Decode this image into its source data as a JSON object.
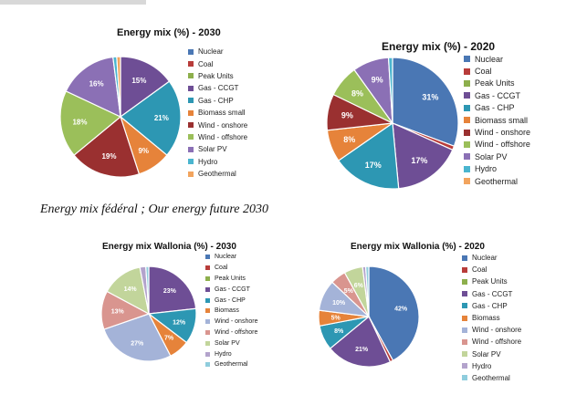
{
  "caption": "Energy mix fédéral ; Our energy future 2030",
  "colors": {
    "Nuclear": "#4a77b4",
    "Coal": "#b83c3a",
    "Peak Units": "#8daf4c",
    "Gas - CCGT": "#6e4e95",
    "Gas - CHP": "#2d97b3",
    "Biomass small": "#e6833a",
    "Biomass": "#e6833a",
    "Wind - onshore": "#9a3030",
    "Wind - offshore": "#9bbf5a",
    "Solar PV": "#8b70b5",
    "Hydro": "#4ab5cf",
    "Geothermal": "#f2a45e",
    "Wind - onshore W": "#a4b3d8",
    "Wind - offshore W": "#d9958f",
    "Solar PV W": "#c2d59b",
    "Hydro W": "#b3a3cc",
    "Geothermal W": "#8fcddd"
  },
  "chart_data": [
    {
      "type": "pie",
      "title": "Energy mix (%) - 2030",
      "slices": [
        {
          "label": "Nuclear",
          "value": 0,
          "shown": ""
        },
        {
          "label": "Coal",
          "value": 0,
          "shown": ""
        },
        {
          "label": "Peak Units",
          "value": 0,
          "shown": ""
        },
        {
          "label": "Gas - CCGT",
          "value": 15,
          "shown": "15%"
        },
        {
          "label": "Gas - CHP",
          "value": 21,
          "shown": "21%"
        },
        {
          "label": "Biomass small",
          "value": 9,
          "shown": "9%"
        },
        {
          "label": "Wind - onshore",
          "value": 19,
          "shown": "19%"
        },
        {
          "label": "Wind - offshore",
          "value": 18,
          "shown": "18%"
        },
        {
          "label": "Solar PV",
          "value": 16,
          "shown": "16%"
        },
        {
          "label": "Hydro",
          "value": 1,
          "shown": ""
        },
        {
          "label": "Geothermal",
          "value": 1,
          "shown": ""
        }
      ],
      "legend": [
        "Nuclear",
        "Coal",
        "Peak Units",
        "Gas - CCGT",
        "Gas - CHP",
        "Biomass small",
        "Wind - onshore",
        "Wind - offshore",
        "Solar PV",
        "Hydro",
        "Geothermal"
      ],
      "legend_colors": [
        "Nuclear",
        "Coal",
        "Peak Units",
        "Gas - CCGT",
        "Gas - CHP",
        "Biomass small",
        "Wind - onshore",
        "Wind - offshore",
        "Solar PV",
        "Hydro",
        "Geothermal"
      ]
    },
    {
      "type": "pie",
      "title": "Energy mix (%) - 2020",
      "slices": [
        {
          "label": "Nuclear",
          "value": 31,
          "shown": "31%"
        },
        {
          "label": "Coal",
          "value": 1,
          "shown": ""
        },
        {
          "label": "Peak Units",
          "value": 0,
          "shown": ""
        },
        {
          "label": "Gas - CCGT",
          "value": 17,
          "shown": "17%"
        },
        {
          "label": "Gas - CHP",
          "value": 17,
          "shown": "17%"
        },
        {
          "label": "Biomass small",
          "value": 8,
          "shown": "8%"
        },
        {
          "label": "Wind - onshore",
          "value": 9,
          "shown": "9%"
        },
        {
          "label": "Wind - offshore",
          "value": 8,
          "shown": "8%"
        },
        {
          "label": "Solar PV",
          "value": 9,
          "shown": "9%"
        },
        {
          "label": "Hydro",
          "value": 1,
          "shown": ""
        },
        {
          "label": "Geothermal",
          "value": 0,
          "shown": ""
        }
      ],
      "legend": [
        "Nuclear",
        "Coal",
        "Peak Units",
        "Gas - CCGT",
        "Gas - CHP",
        "Biomass small",
        "Wind - onshore",
        "Wind - offshore",
        "Solar PV",
        "Hydro",
        "Geothermal"
      ],
      "legend_colors": [
        "Nuclear",
        "Coal",
        "Peak Units",
        "Gas - CCGT",
        "Gas - CHP",
        "Biomass small",
        "Wind - onshore",
        "Wind - offshore",
        "Solar PV",
        "Hydro",
        "Geothermal"
      ]
    },
    {
      "type": "pie",
      "title": "Energy mix Wallonia  (%) - 2030",
      "slices": [
        {
          "label": "Nuclear",
          "value": 0,
          "shown": ""
        },
        {
          "label": "Coal",
          "value": 0,
          "shown": ""
        },
        {
          "label": "Peak Units",
          "value": 0,
          "shown": ""
        },
        {
          "label": "Gas - CCGT",
          "value": 23,
          "shown": "23%"
        },
        {
          "label": "Gas - CHP",
          "value": 12,
          "shown": "12%"
        },
        {
          "label": "Biomass",
          "value": 7,
          "shown": "7%"
        },
        {
          "label": "Wind - onshore",
          "value": 27,
          "shown": "27%"
        },
        {
          "label": "Wind - offshore",
          "value": 13,
          "shown": "13%"
        },
        {
          "label": "Solar PV",
          "value": 14,
          "shown": "14%"
        },
        {
          "label": "Hydro",
          "value": 2,
          "shown": ""
        },
        {
          "label": "Geothermal",
          "value": 1,
          "shown": ""
        }
      ],
      "legend": [
        "Nuclear",
        "Coal",
        "Peak Units",
        "Gas - CCGT",
        "Gas - CHP",
        "Biomass",
        "Wind - onshore",
        "Wind - offshore",
        "Solar PV",
        "Hydro",
        "Geothermal"
      ],
      "legend_colors": [
        "Nuclear",
        "Coal",
        "Peak Units",
        "Gas - CCGT",
        "Gas - CHP",
        "Biomass",
        "Wind - onshore W",
        "Wind - offshore W",
        "Solar PV W",
        "Hydro W",
        "Geothermal W"
      ]
    },
    {
      "type": "pie",
      "title": "Energy mix Wallonia  (%) - 2020",
      "slices": [
        {
          "label": "Nuclear",
          "value": 42,
          "shown": "42%"
        },
        {
          "label": "Coal",
          "value": 1,
          "shown": ""
        },
        {
          "label": "Peak Units",
          "value": 0,
          "shown": ""
        },
        {
          "label": "Gas - CCGT",
          "value": 21,
          "shown": "21%"
        },
        {
          "label": "Gas - CHP",
          "value": 8,
          "shown": "8%"
        },
        {
          "label": "Biomass",
          "value": 5,
          "shown": "5%"
        },
        {
          "label": "Wind - onshore",
          "value": 10,
          "shown": "10%"
        },
        {
          "label": "Wind - offshore",
          "value": 5,
          "shown": "5%"
        },
        {
          "label": "Solar PV",
          "value": 6,
          "shown": "6%"
        },
        {
          "label": "Hydro",
          "value": 1,
          "shown": ""
        },
        {
          "label": "Geothermal",
          "value": 1,
          "shown": ""
        }
      ],
      "legend": [
        "Nuclear",
        "Coal",
        "Peak Units",
        "Gas - CCGT",
        "Gas - CHP",
        "Biomass",
        "Wind - onshore",
        "Wind - offshore",
        "Solar PV",
        "Hydro",
        "Geothermal"
      ],
      "legend_colors": [
        "Nuclear",
        "Coal",
        "Peak Units",
        "Gas - CCGT",
        "Gas - CHP",
        "Biomass",
        "Wind - onshore W",
        "Wind - offshore W",
        "Solar PV W",
        "Hydro W",
        "Geothermal W"
      ]
    }
  ]
}
